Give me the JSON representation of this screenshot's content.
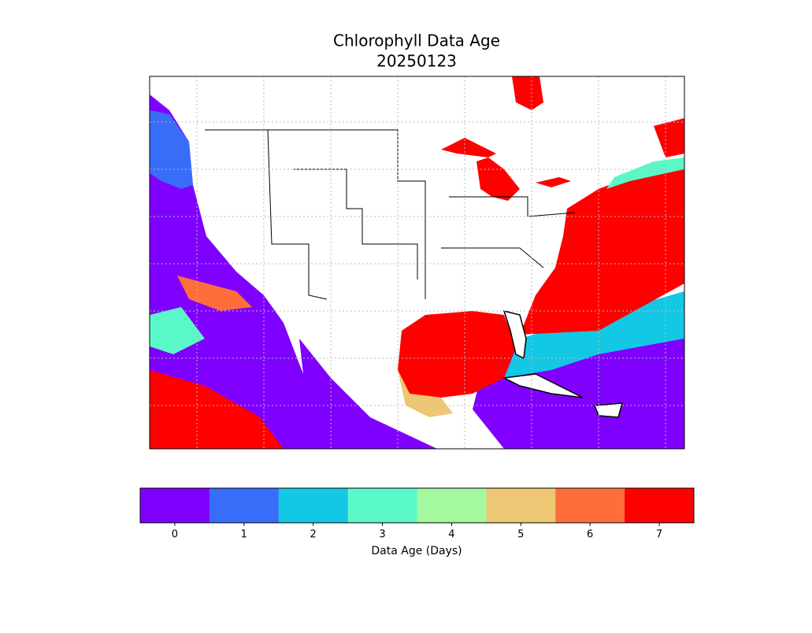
{
  "title": "Chlorophyll Data Age",
  "date": "20250123",
  "colorbar": {
    "label": "Data Age (Days)",
    "ticks": [
      0,
      1,
      2,
      3,
      4,
      5,
      6,
      7
    ],
    "colors": [
      "#7f00ff",
      "#386df9",
      "#13c8e4",
      "#5af8c8",
      "#a4f89f",
      "#edc774",
      "#ff6e3a",
      "#ff0000"
    ]
  }
}
